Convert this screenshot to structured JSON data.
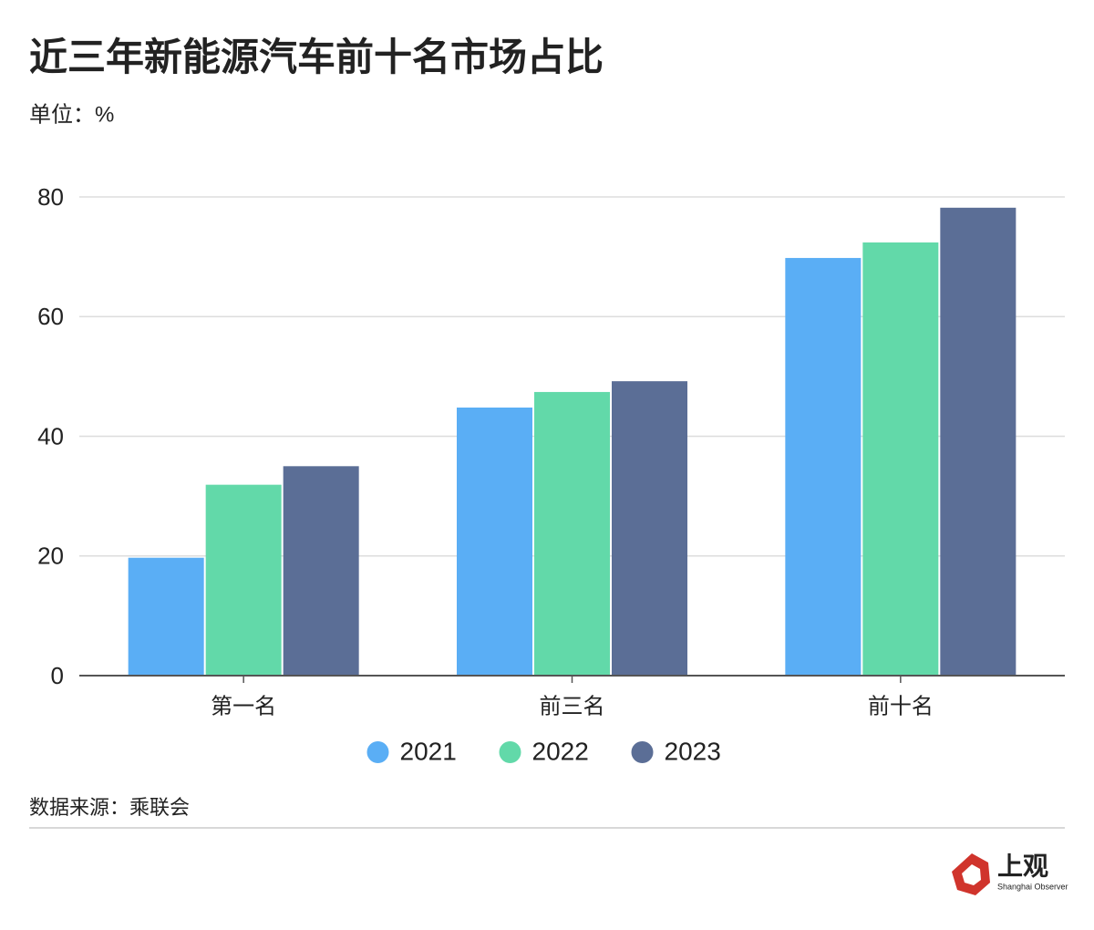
{
  "chart_data": {
    "type": "bar",
    "title": "近三年新能源汽车前十名市场占比",
    "subtitle": "单位：%",
    "categories": [
      "第一名",
      "前三名",
      "前十名"
    ],
    "series": [
      {
        "name": "2021",
        "color": "#5aaef5",
        "values": [
          19.7,
          44.8,
          69.8
        ]
      },
      {
        "name": "2022",
        "color": "#62d9a9",
        "values": [
          31.9,
          47.4,
          72.4
        ]
      },
      {
        "name": "2023",
        "color": "#5b6e96",
        "values": [
          35.0,
          49.2,
          78.2
        ]
      }
    ],
    "ylim": [
      0,
      80
    ],
    "yticks": [
      0,
      20,
      40,
      60,
      80
    ],
    "grid": true,
    "source": "数据来源：乘联会"
  },
  "brand": {
    "name": "上观",
    "tagline": "Shanghai Observer"
  }
}
